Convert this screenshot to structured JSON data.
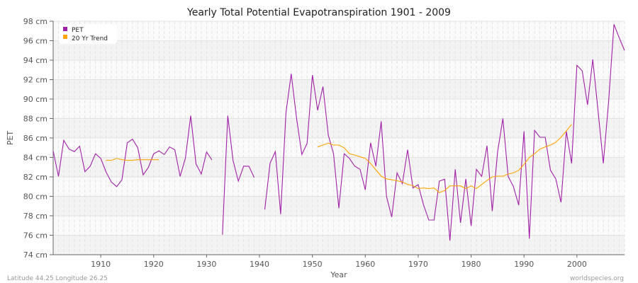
{
  "chart_data": {
    "type": "line",
    "title": "Yearly Total Potential Evapotranspiration 1901 - 2009",
    "xlabel": "Year",
    "ylabel": "PET",
    "xlim": [
      1901,
      2009
    ],
    "ylim": [
      74,
      98
    ],
    "y_unit": "cm",
    "y_ticks": [
      "74 cm",
      "76 cm",
      "78 cm",
      "80 cm",
      "82 cm",
      "84 cm",
      "86 cm",
      "88 cm",
      "90 cm",
      "92 cm",
      "94 cm",
      "96 cm",
      "98 cm"
    ],
    "x_ticks": [
      "1910",
      "1920",
      "1930",
      "1940",
      "1950",
      "1960",
      "1970",
      "1980",
      "1990",
      "2000"
    ],
    "grid": true,
    "legend_position": "top-left",
    "series": [
      {
        "name": "PET",
        "color": "#a020a8",
        "start_year": 1901,
        "values": [
          84.67,
          82.05,
          85.76,
          84.86,
          84.6,
          85.15,
          82.53,
          83.1,
          84.38,
          83.9,
          82.5,
          81.47,
          81.0,
          81.7,
          85.5,
          85.88,
          84.98,
          82.2,
          82.97,
          84.38,
          84.67,
          84.3,
          85.08,
          84.79,
          82.05,
          83.94,
          88.3,
          83.33,
          82.29,
          84.55,
          83.75,
          null,
          76.06,
          88.3,
          83.7,
          81.56,
          83.1,
          83.1,
          81.93,
          null,
          78.65,
          83.4,
          84.6,
          78.17,
          88.6,
          92.6,
          88.06,
          84.3,
          85.44,
          92.47,
          88.84,
          91.28,
          86.3,
          84.38,
          78.78,
          84.38,
          83.9,
          83.1,
          82.78,
          80.67,
          85.5,
          83.1,
          87.7,
          80.0,
          77.88,
          82.41,
          81.3,
          84.79,
          80.86,
          81.2,
          79.14,
          77.56,
          77.56,
          81.56,
          81.76,
          75.45,
          82.78,
          77.27,
          81.8,
          76.96,
          82.78,
          82.05,
          85.2,
          78.48,
          84.55,
          88.0,
          82.05,
          81.0,
          79.1,
          86.68,
          75.65,
          86.78,
          86.07,
          86.07,
          82.68,
          81.8,
          79.38,
          86.68,
          83.38,
          93.47,
          92.9,
          89.4,
          94.08,
          88.74,
          83.38,
          89.8,
          97.68,
          96.3,
          95.0
        ]
      },
      {
        "name": "20 Yr Trend",
        "color": "#ffa500",
        "start_year": 1901,
        "values": [
          null,
          null,
          null,
          null,
          null,
          null,
          null,
          null,
          null,
          null,
          83.7,
          83.7,
          83.9,
          83.77,
          83.7,
          83.7,
          83.77,
          83.77,
          83.77,
          83.77,
          83.77,
          null,
          null,
          null,
          null,
          null,
          null,
          null,
          null,
          null,
          null,
          null,
          null,
          null,
          null,
          null,
          null,
          null,
          null,
          null,
          null,
          null,
          null,
          null,
          null,
          null,
          null,
          null,
          null,
          null,
          85.08,
          85.27,
          85.47,
          85.27,
          85.27,
          84.98,
          84.38,
          84.25,
          84.06,
          83.9,
          83.38,
          82.73,
          82.07,
          81.8,
          81.7,
          81.6,
          81.47,
          81.22,
          81.1,
          80.79,
          80.86,
          80.79,
          80.86,
          80.38,
          80.6,
          81.08,
          81.08,
          81.08,
          80.79,
          81.08,
          80.79,
          81.22,
          81.64,
          82.0,
          82.07,
          82.07,
          82.29,
          82.41,
          82.68,
          83.28,
          84.0,
          84.38,
          84.86,
          85.08,
          85.27,
          85.56,
          86.07,
          86.73,
          87.4
        ]
      }
    ]
  },
  "footer": {
    "location": "Latitude 44.25 Longitude 26.25",
    "source": "worldspecies.org"
  }
}
